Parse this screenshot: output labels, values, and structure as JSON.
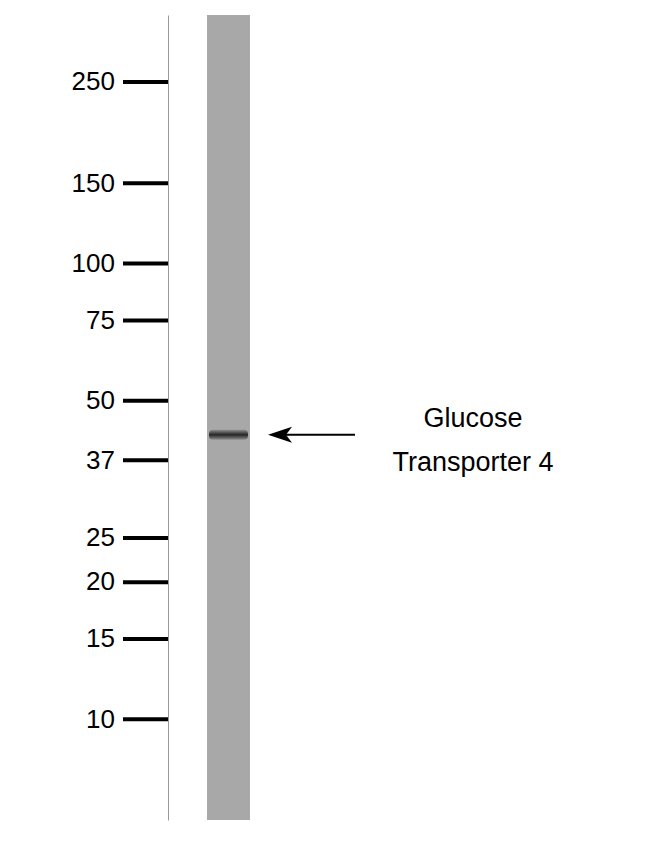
{
  "chart_data": {
    "type": "western_blot",
    "categories": [
      null
    ],
    "values": [
      42
    ],
    "color": "#262626",
    "log": "y",
    "ylim": [
      6,
      350
    ],
    "yticks": [
      250,
      150,
      100,
      75,
      50,
      37,
      25,
      20,
      15,
      10
    ],
    "tick_labels": "y",
    "annotation": [
      "Glucose",
      "Transporter 4"
    ]
  }
}
